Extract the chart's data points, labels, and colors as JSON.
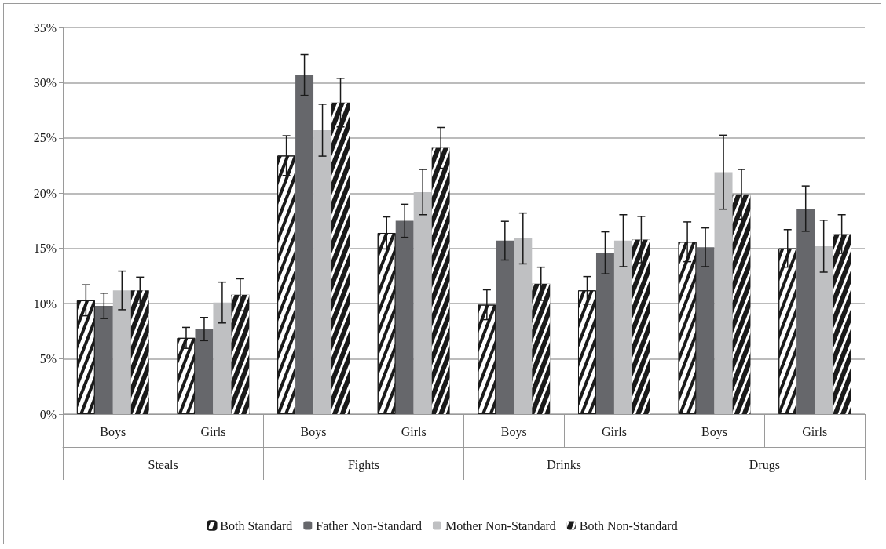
{
  "chart_data": {
    "type": "bar",
    "categories": [
      "Boys",
      "Girls",
      "Boys",
      "Girls",
      "Boys",
      "Girls",
      "Boys",
      "Girls"
    ],
    "annotations": [
      "Steals",
      "Fights",
      "Drinks",
      "Drugs"
    ],
    "series": [
      {
        "name": "Both Standard",
        "color": "#ffffff",
        "values": [
          10.3,
          6.9,
          23.4,
          16.4,
          9.9,
          11.2,
          15.6,
          15.0
        ],
        "errors": [
          1.4,
          0.95,
          1.8,
          1.45,
          1.35,
          1.25,
          1.8,
          1.7
        ]
      },
      {
        "name": "Father Non-Standard",
        "color": "#66676b",
        "values": [
          9.8,
          7.7,
          30.7,
          17.5,
          15.7,
          14.6,
          15.1,
          18.6
        ],
        "errors": [
          1.15,
          1.05,
          1.85,
          1.5,
          1.75,
          1.9,
          1.75,
          2.05
        ]
      },
      {
        "name": "Mother Non-Standard",
        "color": "#bfc0c2",
        "values": [
          11.2,
          10.1,
          25.7,
          20.1,
          15.9,
          15.7,
          21.9,
          15.2
        ],
        "errors": [
          1.75,
          1.85,
          2.35,
          2.05,
          2.3,
          2.35,
          3.35,
          2.35
        ]
      },
      {
        "name": "Both Non-Standard",
        "color": "#1a1a1a",
        "values": [
          11.2,
          10.8,
          28.2,
          24.1,
          11.8,
          15.8,
          19.9,
          16.3
        ],
        "errors": [
          1.2,
          1.45,
          2.2,
          1.85,
          1.5,
          2.1,
          2.25,
          1.75
        ]
      }
    ],
    "ylim": [
      0,
      35
    ],
    "yticks": [
      {
        "value": 0,
        "label": "0%"
      },
      {
        "value": 5,
        "label": "5%"
      },
      {
        "value": 10,
        "label": "10%"
      },
      {
        "value": 15,
        "label": "15%"
      },
      {
        "value": 20,
        "label": "20%"
      },
      {
        "value": 25,
        "label": "25%"
      },
      {
        "value": 30,
        "label": "30%"
      },
      {
        "value": 35,
        "label": "35%"
      }
    ],
    "grid": "y",
    "legend": "bottom"
  }
}
